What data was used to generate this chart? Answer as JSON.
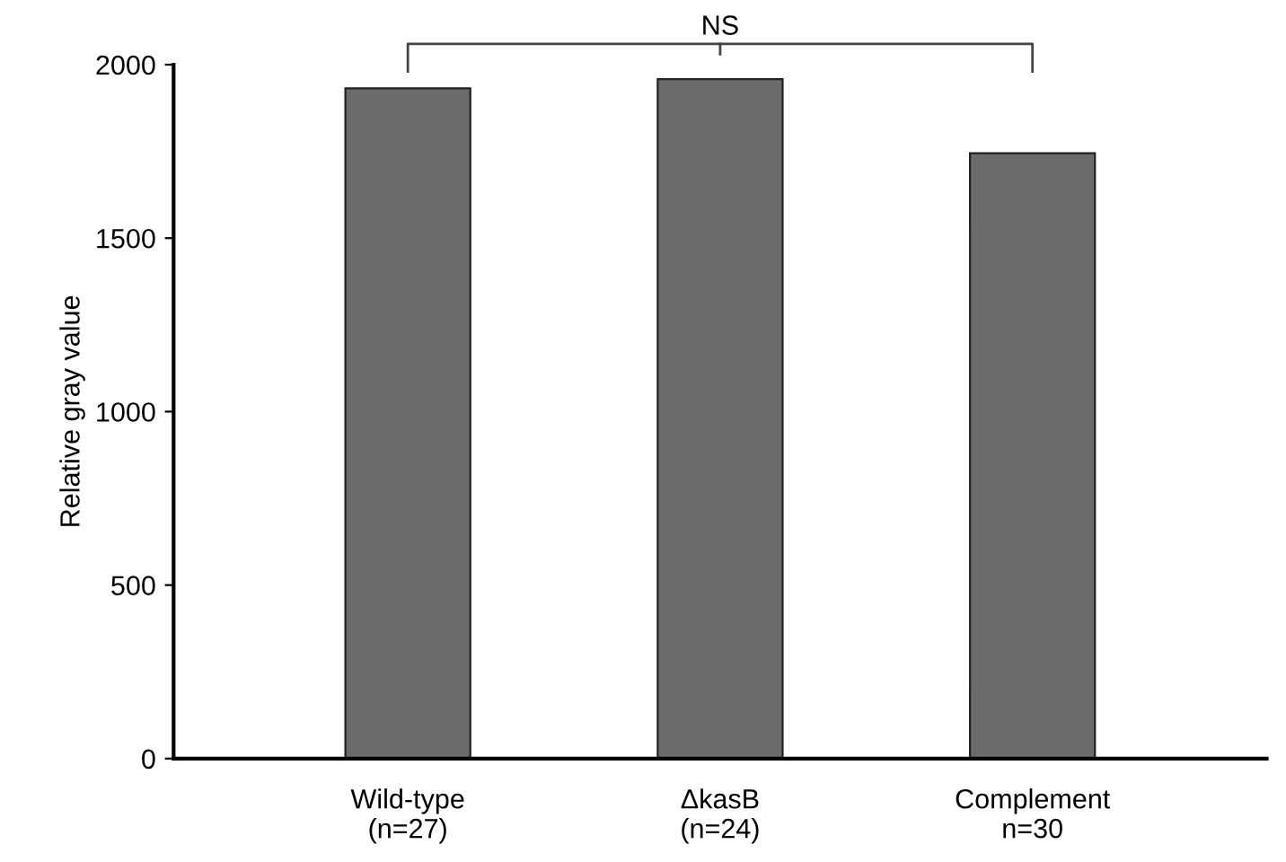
{
  "chart_data": {
    "type": "bar",
    "ylabel": "Relative gray value",
    "categories": [
      "Wild-type\n(n=27)",
      "ΔkasB\n(n=24)",
      "Complement\nn=30"
    ],
    "values": [
      1932,
      1958,
      1745
    ],
    "color": "#6b6b6b",
    "ylim": [
      0,
      2000
    ],
    "yticks": [
      0,
      500,
      1000,
      1500,
      2000
    ],
    "grid": false,
    "annotations": [
      "NS"
    ]
  }
}
